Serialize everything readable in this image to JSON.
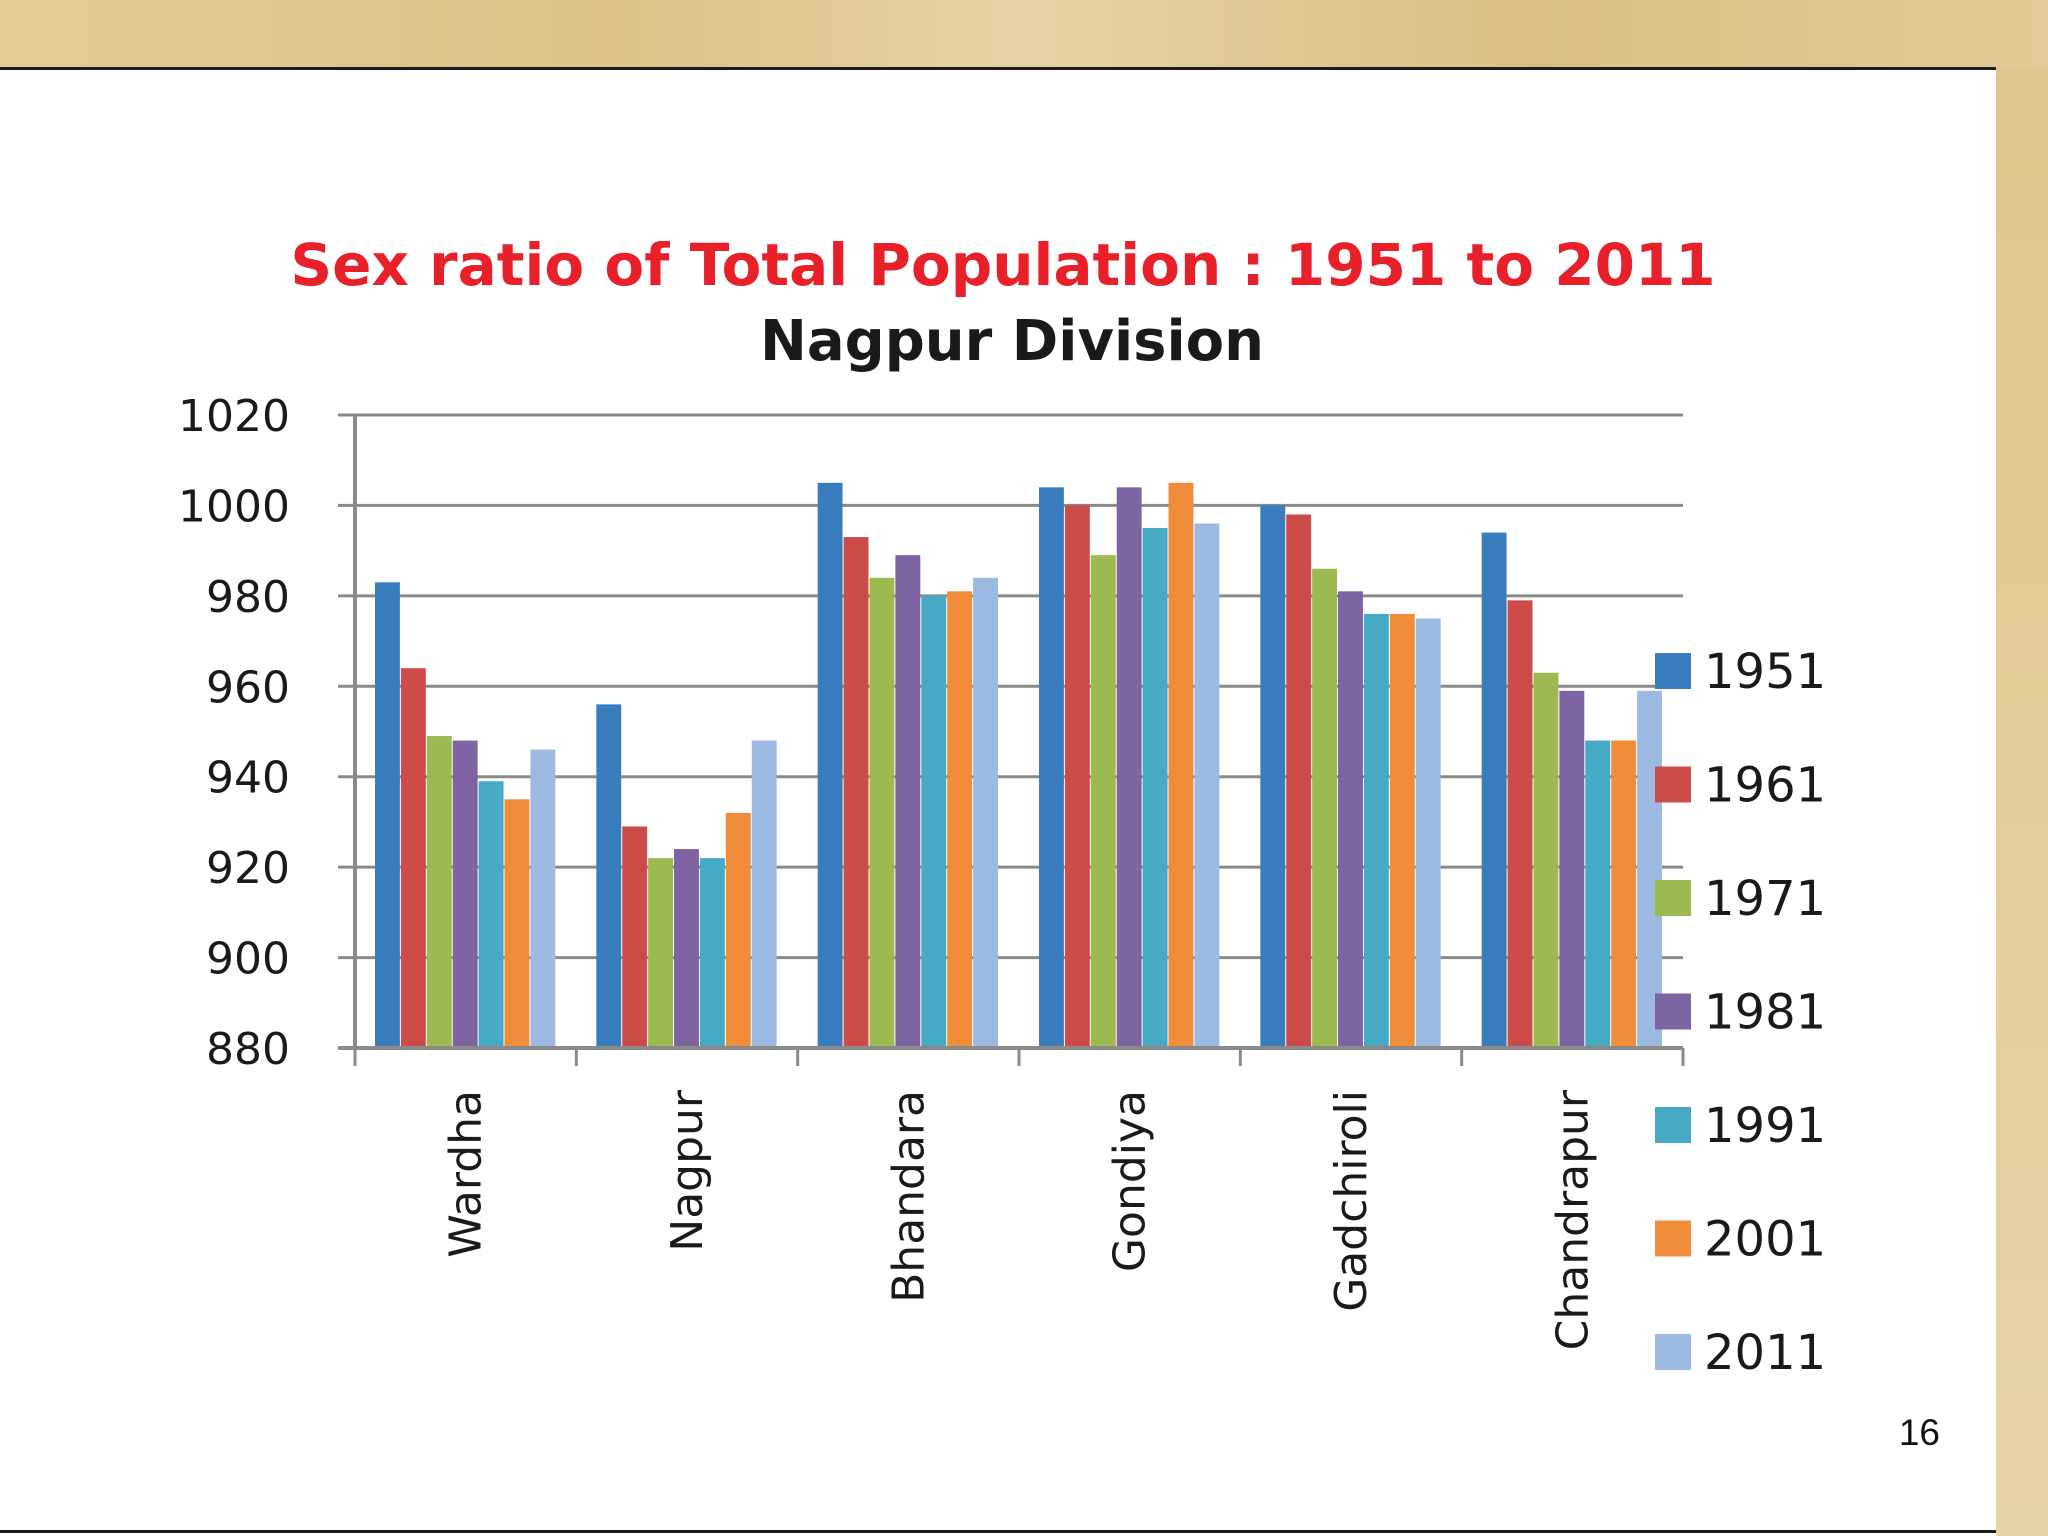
{
  "page": {
    "number": "16"
  },
  "chart_data": {
    "type": "bar",
    "title": "Sex ratio of Total Population :  1951 to 2011",
    "subtitle": "Nagpur Division",
    "title_color": "#e8202a",
    "xlabel": "",
    "ylabel": "",
    "ylim": [
      880,
      1020
    ],
    "yticks": [
      880,
      900,
      920,
      940,
      960,
      980,
      1000,
      1020
    ],
    "grid": true,
    "legend_position": "right",
    "categories": [
      "Wardha",
      "Nagpur",
      "Bhandara",
      "Gondiya",
      "Gadchiroli",
      "Chandrapur"
    ],
    "series": [
      {
        "name": "1951",
        "color": "#3a7dbf",
        "values": [
          983,
          956,
          1005,
          1004,
          1000,
          994
        ]
      },
      {
        "name": "1961",
        "color": "#cd4b48",
        "values": [
          964,
          929,
          993,
          1000,
          998,
          979
        ]
      },
      {
        "name": "1971",
        "color": "#9cba50",
        "values": [
          949,
          922,
          984,
          989,
          986,
          963
        ]
      },
      {
        "name": "1981",
        "color": "#7e64a3",
        "values": [
          948,
          924,
          989,
          1004,
          981,
          959
        ]
      },
      {
        "name": "1991",
        "color": "#46aac4",
        "values": [
          939,
          922,
          980,
          995,
          976,
          948
        ]
      },
      {
        "name": "2001",
        "color": "#f08d3b",
        "values": [
          935,
          932,
          981,
          1005,
          976,
          948
        ]
      },
      {
        "name": "2011",
        "color": "#9dbbe2",
        "values": [
          946,
          948,
          984,
          996,
          975,
          959
        ]
      }
    ]
  }
}
